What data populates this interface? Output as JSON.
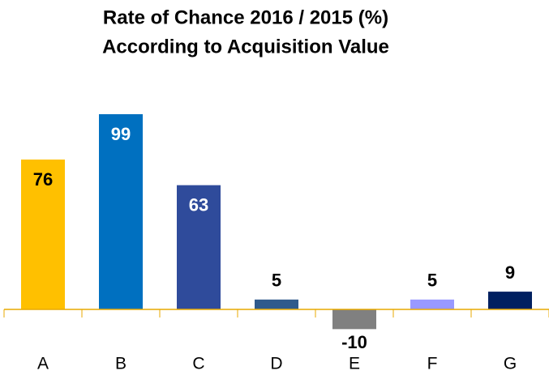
{
  "chart_data": {
    "type": "bar",
    "title": [
      "Rate of Chance 2016 / 2015 (%)",
      "According to Acquisition Value"
    ],
    "categories": [
      "A",
      "B",
      "C",
      "D",
      "E",
      "F",
      "G"
    ],
    "values": [
      76,
      99,
      63,
      5,
      -10,
      5,
      9
    ],
    "colors": [
      "#FFC000",
      "#0070C0",
      "#2F4B9B",
      "#2F5A8C",
      "#808080",
      "#9999FF",
      "#002060"
    ],
    "axis_color": "#E8A900"
  }
}
